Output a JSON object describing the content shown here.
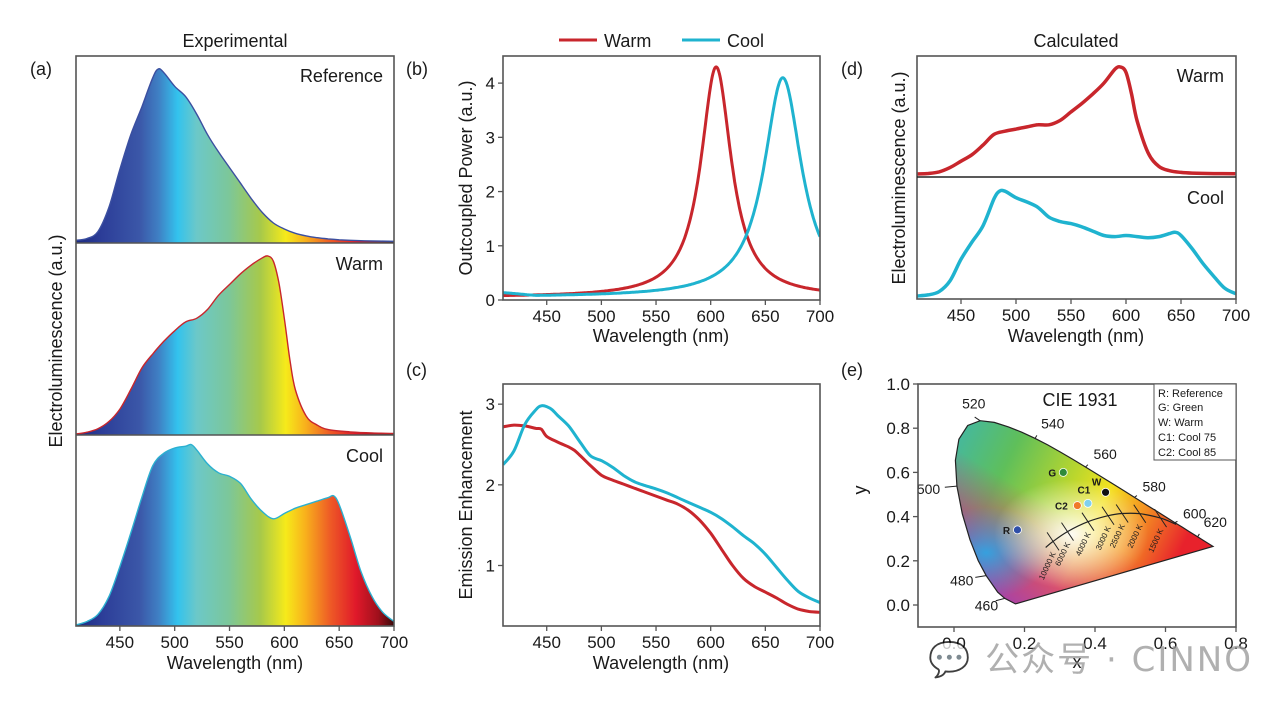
{
  "figure": {
    "col_titles": {
      "experimental": "Experimental",
      "calculated": "Calculated"
    },
    "panel_labels": [
      "(a)",
      "(b)",
      "(c)",
      "(d)",
      "(e)"
    ],
    "colors": {
      "warm": "#c8262c",
      "cool": "#1fb3cf",
      "frame": "#555555",
      "text": "#1a1a1a"
    },
    "watermark": "公众号 · CINNO"
  },
  "chart_data": [
    {
      "id": "a",
      "type": "area",
      "title": "Experimental",
      "xlabel": "Wavelength (nm)",
      "ylabel": "Electroluminescence (a.u.)",
      "xlim": [
        410,
        700
      ],
      "xticks": [
        450,
        500,
        550,
        600,
        650,
        700
      ],
      "fill": "spectral-gradient",
      "subplots": [
        {
          "name": "Reference",
          "edge": "#3b4fa0",
          "x": [
            410,
            420,
            430,
            440,
            450,
            460,
            470,
            480,
            485,
            490,
            500,
            510,
            520,
            530,
            540,
            550,
            560,
            570,
            580,
            590,
            600,
            610,
            620,
            630,
            640,
            650,
            660,
            680,
            700
          ],
          "y": [
            0.01,
            0.02,
            0.06,
            0.2,
            0.42,
            0.62,
            0.78,
            0.95,
            1.0,
            0.98,
            0.9,
            0.84,
            0.74,
            0.62,
            0.52,
            0.43,
            0.34,
            0.25,
            0.17,
            0.11,
            0.075,
            0.05,
            0.035,
            0.025,
            0.018,
            0.013,
            0.01,
            0.006,
            0.004
          ]
        },
        {
          "name": "Warm",
          "edge": "#c8262c",
          "x": [
            410,
            420,
            430,
            440,
            450,
            460,
            470,
            480,
            490,
            500,
            510,
            520,
            530,
            540,
            550,
            560,
            570,
            580,
            585,
            590,
            595,
            600,
            605,
            610,
            620,
            630,
            640,
            660,
            680,
            700
          ],
          "y": [
            0.0,
            0.01,
            0.03,
            0.07,
            0.14,
            0.25,
            0.37,
            0.45,
            0.52,
            0.58,
            0.63,
            0.65,
            0.7,
            0.78,
            0.84,
            0.9,
            0.95,
            0.99,
            1.0,
            0.97,
            0.85,
            0.65,
            0.42,
            0.25,
            0.1,
            0.05,
            0.025,
            0.012,
            0.006,
            0.003
          ]
        },
        {
          "name": "Cool",
          "edge": "#2bb0d0",
          "x": [
            410,
            420,
            430,
            440,
            450,
            460,
            470,
            480,
            490,
            500,
            510,
            515,
            520,
            530,
            540,
            550,
            560,
            570,
            580,
            590,
            600,
            610,
            620,
            630,
            640,
            645,
            650,
            660,
            670,
            680,
            690,
            700
          ],
          "y": [
            0.0,
            0.02,
            0.06,
            0.16,
            0.33,
            0.52,
            0.72,
            0.9,
            0.97,
            1.0,
            1.01,
            1.02,
            0.99,
            0.91,
            0.86,
            0.84,
            0.8,
            0.71,
            0.64,
            0.6,
            0.63,
            0.66,
            0.68,
            0.7,
            0.72,
            0.73,
            0.68,
            0.5,
            0.3,
            0.16,
            0.07,
            0.02
          ]
        }
      ]
    },
    {
      "id": "b",
      "type": "line",
      "xlabel": "Wavelength (nm)",
      "ylabel": "Outcoupled Power (a.u.)",
      "xlim": [
        410,
        700
      ],
      "ylim": [
        0,
        4.5
      ],
      "xticks": [
        450,
        500,
        550,
        600,
        650,
        700
      ],
      "yticks": [
        0,
        1,
        2,
        3,
        4
      ],
      "legend": {
        "position": "top-center",
        "entries": [
          "Warm",
          "Cool"
        ]
      },
      "series": [
        {
          "name": "Warm",
          "color": "#c8262c",
          "peak_x": 605,
          "peak_y": 4.3,
          "hwhm": 17,
          "baseline": 0.05
        },
        {
          "name": "Cool",
          "color": "#1fb3cf",
          "peak_x": 666,
          "peak_y": 4.1,
          "hwhm": 21,
          "baseline": 0.05
        }
      ]
    },
    {
      "id": "c",
      "type": "line",
      "xlabel": "Wavelength (nm)",
      "ylabel": "Emission Enhancement",
      "xlim": [
        410,
        700
      ],
      "ylim": [
        0.25,
        3.25
      ],
      "xticks": [
        450,
        500,
        550,
        600,
        650,
        700
      ],
      "yticks": [
        1,
        2,
        3
      ],
      "series": [
        {
          "name": "Warm",
          "color": "#c8262c",
          "x": [
            410,
            420,
            430,
            440,
            445,
            450,
            460,
            470,
            475,
            480,
            490,
            500,
            510,
            520,
            530,
            540,
            550,
            560,
            570,
            580,
            590,
            600,
            610,
            620,
            630,
            640,
            650,
            660,
            670,
            680,
            690,
            700
          ],
          "y": [
            2.72,
            2.74,
            2.73,
            2.7,
            2.69,
            2.6,
            2.53,
            2.47,
            2.43,
            2.37,
            2.24,
            2.12,
            2.06,
            2.01,
            1.96,
            1.91,
            1.86,
            1.81,
            1.76,
            1.68,
            1.56,
            1.4,
            1.2,
            1.0,
            0.84,
            0.74,
            0.67,
            0.6,
            0.52,
            0.46,
            0.43,
            0.42
          ]
        },
        {
          "name": "Cool",
          "color": "#1fb3cf",
          "x": [
            410,
            420,
            430,
            440,
            445,
            450,
            455,
            460,
            470,
            480,
            490,
            500,
            510,
            520,
            530,
            540,
            550,
            560,
            570,
            580,
            590,
            600,
            610,
            620,
            630,
            640,
            650,
            660,
            670,
            680,
            690,
            700
          ],
          "y": [
            2.25,
            2.42,
            2.75,
            2.93,
            2.98,
            2.97,
            2.93,
            2.86,
            2.73,
            2.54,
            2.36,
            2.3,
            2.22,
            2.12,
            2.04,
            1.99,
            1.95,
            1.9,
            1.84,
            1.78,
            1.72,
            1.66,
            1.58,
            1.48,
            1.37,
            1.27,
            1.14,
            0.98,
            0.82,
            0.68,
            0.6,
            0.54
          ]
        }
      ]
    },
    {
      "id": "d",
      "type": "line",
      "title": "Calculated",
      "xlabel": "Wavelength (nm)",
      "ylabel": "Electroluminescence (a.u.)",
      "xlim": [
        410,
        700
      ],
      "xticks": [
        450,
        500,
        550,
        600,
        650,
        700
      ],
      "subplots": [
        {
          "name": "Warm",
          "color": "#c8262c",
          "x": [
            410,
            420,
            430,
            440,
            450,
            460,
            470,
            480,
            490,
            500,
            510,
            520,
            530,
            540,
            550,
            560,
            570,
            580,
            590,
            595,
            600,
            605,
            610,
            620,
            630,
            640,
            650,
            660,
            680,
            700
          ],
          "y": [
            0.0,
            0.005,
            0.02,
            0.06,
            0.12,
            0.18,
            0.27,
            0.37,
            0.4,
            0.42,
            0.44,
            0.46,
            0.46,
            0.5,
            0.58,
            0.66,
            0.75,
            0.85,
            0.98,
            1.0,
            0.95,
            0.75,
            0.5,
            0.2,
            0.07,
            0.03,
            0.015,
            0.008,
            0.004,
            0.003
          ]
        },
        {
          "name": "Cool",
          "color": "#1fb3cf",
          "x": [
            410,
            420,
            430,
            440,
            450,
            460,
            470,
            480,
            485,
            490,
            500,
            510,
            520,
            530,
            540,
            550,
            560,
            570,
            580,
            590,
            600,
            610,
            620,
            630,
            640,
            645,
            650,
            660,
            670,
            680,
            690,
            700
          ],
          "y": [
            0.0,
            0.01,
            0.04,
            0.14,
            0.34,
            0.5,
            0.65,
            0.9,
            0.97,
            0.97,
            0.91,
            0.87,
            0.82,
            0.73,
            0.69,
            0.67,
            0.64,
            0.6,
            0.56,
            0.55,
            0.56,
            0.55,
            0.54,
            0.55,
            0.58,
            0.59,
            0.56,
            0.44,
            0.3,
            0.18,
            0.07,
            0.02
          ]
        }
      ]
    },
    {
      "id": "e",
      "type": "scatter",
      "title": "CIE 1931",
      "xlabel": "x",
      "ylabel": "y",
      "xlim": [
        -0.1,
        0.8
      ],
      "ylim": [
        -0.1,
        1.0
      ],
      "xticks": [
        0.0,
        0.2,
        0.4,
        0.6,
        0.8
      ],
      "yticks": [
        0.0,
        0.2,
        0.4,
        0.6,
        0.8,
        1.0
      ],
      "legend": {
        "position": "top-right",
        "entries": [
          "R: Reference",
          "G: Green",
          "W: Warm",
          "C1: Cool 75",
          "C2: Cool 85"
        ]
      },
      "points": [
        {
          "label": "R",
          "x": 0.18,
          "y": 0.34,
          "color": "#2f4fa8"
        },
        {
          "label": "G",
          "x": 0.31,
          "y": 0.6,
          "color": "#2e8b3a"
        },
        {
          "label": "W",
          "x": 0.43,
          "y": 0.51,
          "color": "#111111"
        },
        {
          "label": "C1",
          "x": 0.38,
          "y": 0.46,
          "color": "#7fd0ee"
        },
        {
          "label": "C2",
          "x": 0.35,
          "y": 0.45,
          "color": "#f07a2a"
        }
      ],
      "locus_wavelengths": [
        {
          "nm": "460",
          "x": 0.144,
          "y": 0.03
        },
        {
          "nm": "480",
          "x": 0.091,
          "y": 0.133
        },
        {
          "nm": "500",
          "x": 0.008,
          "y": 0.538
        },
        {
          "nm": "520",
          "x": 0.074,
          "y": 0.834
        },
        {
          "nm": "540",
          "x": 0.23,
          "y": 0.754
        },
        {
          "nm": "560",
          "x": 0.373,
          "y": 0.624
        },
        {
          "nm": "580",
          "x": 0.512,
          "y": 0.487
        },
        {
          "nm": "600",
          "x": 0.627,
          "y": 0.373
        },
        {
          "nm": "620",
          "x": 0.691,
          "y": 0.308
        }
      ],
      "planckian_cct": [
        "10000 K",
        "6000 K",
        "4000 K",
        "3000 K",
        "2500 K",
        "2000 K",
        "1500 K"
      ],
      "planckian_points": [
        {
          "cct": "10000 K",
          "x": 0.281,
          "y": 0.288
        },
        {
          "cct": "6000 K",
          "x": 0.322,
          "y": 0.332
        },
        {
          "cct": "4000 K",
          "x": 0.38,
          "y": 0.377
        },
        {
          "cct": "3000 K",
          "x": 0.437,
          "y": 0.404
        },
        {
          "cct": "2500 K",
          "x": 0.477,
          "y": 0.414
        },
        {
          "cct": "2000 K",
          "x": 0.527,
          "y": 0.413
        },
        {
          "cct": "1500 K",
          "x": 0.586,
          "y": 0.393
        }
      ]
    }
  ]
}
